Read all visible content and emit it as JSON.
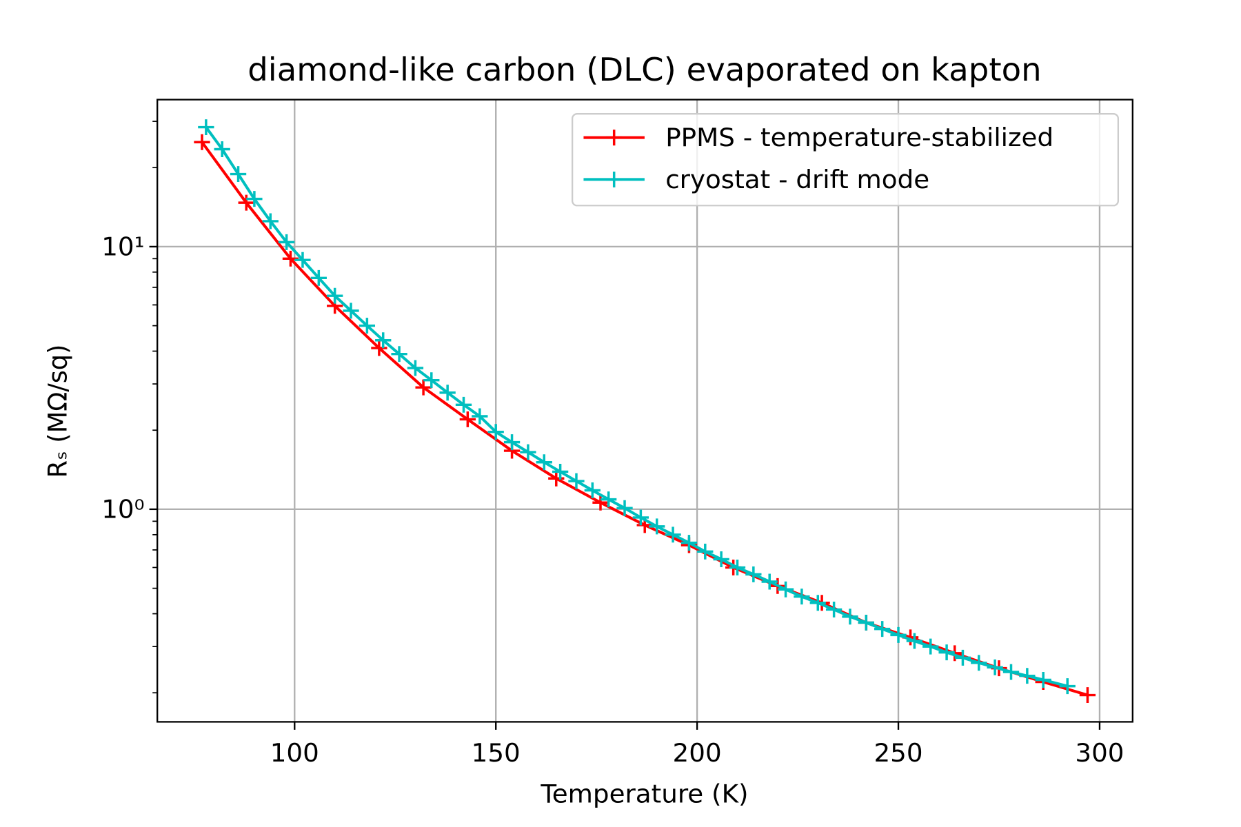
{
  "chart_data": {
    "type": "line",
    "title": "diamond-like carbon (DLC) evaporated on kapton",
    "xlabel": "Temperature (K)",
    "ylabel": "Rₛ (MΩ/sq)",
    "log_y": true,
    "grid": true,
    "legend": "upper right",
    "marker": "+",
    "xlim": [
      65.9,
      308.2
    ],
    "ylim": [
      0.155,
      36.3
    ],
    "xticks": [
      100,
      150,
      200,
      250,
      300
    ],
    "yticks": [
      {
        "value": 1,
        "label": "10⁰"
      },
      {
        "value": 10,
        "label": "10¹"
      }
    ],
    "yminorticks": [
      0.2,
      0.3,
      0.4,
      0.5,
      0.6,
      0.7,
      0.8,
      0.9,
      2,
      3,
      4,
      5,
      6,
      7,
      8,
      9,
      20,
      30
    ],
    "series": [
      {
        "name": "PPMS - temperature-stabilized",
        "color": "#ff0000",
        "x": [
          77,
          88,
          99,
          110,
          121,
          132,
          143,
          154,
          165,
          176,
          187,
          198,
          209,
          220,
          231,
          242,
          253,
          264,
          275,
          286,
          297
        ],
        "values": [
          25.0,
          14.7,
          9.0,
          5.95,
          4.11,
          2.91,
          2.2,
          1.67,
          1.31,
          1.06,
          0.87,
          0.73,
          0.6,
          0.51,
          0.44,
          0.37,
          0.325,
          0.283,
          0.248,
          0.22,
          0.196
        ]
      },
      {
        "name": "cryostat - drift mode",
        "color": "#00bfbf",
        "x": [
          78,
          82,
          86,
          90,
          94,
          98,
          102,
          106,
          110,
          114,
          118,
          122,
          126,
          130,
          134,
          138,
          142,
          146,
          150,
          154,
          158,
          162,
          166,
          170,
          174,
          178,
          182,
          186,
          190,
          194,
          198,
          202,
          206,
          210,
          214,
          218,
          222,
          226,
          230,
          234,
          238,
          242,
          246,
          250,
          254,
          258,
          262,
          266,
          270,
          274,
          278,
          282,
          286,
          292
        ],
        "values": [
          28.5,
          23.5,
          18.9,
          15.2,
          12.5,
          10.4,
          8.9,
          7.6,
          6.5,
          5.7,
          5.0,
          4.4,
          3.9,
          3.45,
          3.1,
          2.78,
          2.5,
          2.26,
          1.97,
          1.8,
          1.65,
          1.51,
          1.39,
          1.28,
          1.18,
          1.09,
          1.01,
          0.93,
          0.86,
          0.8,
          0.745,
          0.69,
          0.645,
          0.6,
          0.565,
          0.53,
          0.495,
          0.465,
          0.44,
          0.415,
          0.39,
          0.37,
          0.35,
          0.332,
          0.315,
          0.3,
          0.285,
          0.272,
          0.26,
          0.25,
          0.24,
          0.232,
          0.224,
          0.212
        ]
      }
    ]
  }
}
